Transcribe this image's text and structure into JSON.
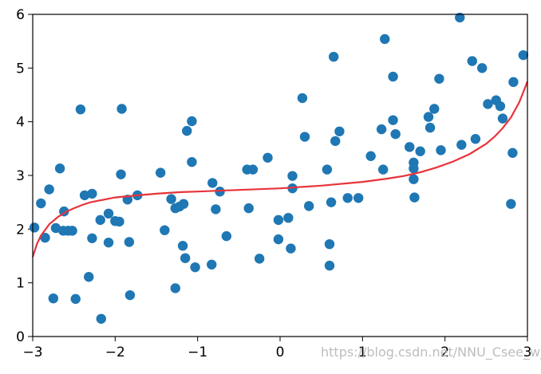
{
  "chart_data": {
    "type": "scatter",
    "title": "",
    "xlabel": "",
    "ylabel": "",
    "xlim": [
      -3,
      3
    ],
    "ylim": [
      0,
      6
    ],
    "xticks": [
      -3,
      -2,
      -1,
      0,
      1,
      2,
      3
    ],
    "xtick_labels": [
      "−3",
      "−2",
      "−1",
      "0",
      "1",
      "2",
      "3"
    ],
    "yticks": [
      0,
      1,
      2,
      3,
      4,
      5,
      6
    ],
    "ytick_labels": [
      "0",
      "1",
      "2",
      "3",
      "4",
      "5",
      "6"
    ],
    "grid": false,
    "legend": "none",
    "colors": {
      "points": "#1f77b4",
      "curve": "#e8333a",
      "axes": "#000000"
    },
    "scatter_points": [
      [
        -2.98,
        2.03
      ],
      [
        -2.9,
        2.48
      ],
      [
        -2.85,
        1.84
      ],
      [
        -2.8,
        2.74
      ],
      [
        -2.75,
        0.71
      ],
      [
        -2.72,
        2.02
      ],
      [
        -2.67,
        3.13
      ],
      [
        -2.63,
        1.97
      ],
      [
        -2.62,
        2.33
      ],
      [
        -2.57,
        1.97
      ],
      [
        -2.52,
        1.97
      ],
      [
        -2.48,
        0.7
      ],
      [
        -2.42,
        4.23
      ],
      [
        -2.37,
        2.63
      ],
      [
        -2.32,
        1.11
      ],
      [
        -2.28,
        2.66
      ],
      [
        -2.28,
        1.83
      ],
      [
        -2.18,
        2.17
      ],
      [
        -2.17,
        0.33
      ],
      [
        -2.08,
        2.29
      ],
      [
        -2.08,
        1.75
      ],
      [
        -2.0,
        2.15
      ],
      [
        -1.95,
        2.14
      ],
      [
        -1.93,
        3.02
      ],
      [
        -1.92,
        4.24
      ],
      [
        -1.85,
        2.55
      ],
      [
        -1.83,
        1.76
      ],
      [
        -1.82,
        0.77
      ],
      [
        -1.73,
        2.63
      ],
      [
        -1.45,
        3.05
      ],
      [
        -1.4,
        1.98
      ],
      [
        -1.32,
        2.56
      ],
      [
        -1.27,
        0.9
      ],
      [
        -1.27,
        2.39
      ],
      [
        -1.22,
        2.42
      ],
      [
        -1.18,
        1.69
      ],
      [
        -1.17,
        2.47
      ],
      [
        -1.15,
        1.46
      ],
      [
        -1.13,
        3.83
      ],
      [
        -1.07,
        4.01
      ],
      [
        -1.07,
        3.25
      ],
      [
        -1.03,
        1.29
      ],
      [
        -0.83,
        1.34
      ],
      [
        -0.82,
        2.86
      ],
      [
        -0.78,
        2.37
      ],
      [
        -0.73,
        2.7
      ],
      [
        -0.65,
        1.87
      ],
      [
        -0.4,
        3.11
      ],
      [
        -0.38,
        2.39
      ],
      [
        -0.33,
        3.11
      ],
      [
        -0.25,
        1.45
      ],
      [
        -0.15,
        3.33
      ],
      [
        -0.02,
        2.17
      ],
      [
        -0.02,
        1.81
      ],
      [
        0.1,
        2.21
      ],
      [
        0.13,
        1.64
      ],
      [
        0.15,
        2.76
      ],
      [
        0.15,
        2.99
      ],
      [
        0.27,
        4.44
      ],
      [
        0.3,
        3.72
      ],
      [
        0.35,
        2.43
      ],
      [
        0.57,
        3.11
      ],
      [
        0.6,
        1.72
      ],
      [
        0.6,
        1.32
      ],
      [
        0.62,
        2.5
      ],
      [
        0.65,
        5.21
      ],
      [
        0.67,
        3.64
      ],
      [
        0.72,
        3.82
      ],
      [
        0.82,
        2.58
      ],
      [
        0.95,
        2.58
      ],
      [
        1.1,
        3.36
      ],
      [
        1.23,
        3.86
      ],
      [
        1.25,
        3.11
      ],
      [
        1.27,
        5.54
      ],
      [
        1.37,
        4.03
      ],
      [
        1.37,
        4.84
      ],
      [
        1.4,
        3.77
      ],
      [
        1.57,
        3.53
      ],
      [
        1.62,
        3.24
      ],
      [
        1.62,
        3.13
      ],
      [
        1.62,
        2.93
      ],
      [
        1.63,
        2.59
      ],
      [
        1.7,
        3.45
      ],
      [
        1.8,
        4.09
      ],
      [
        1.82,
        3.89
      ],
      [
        1.87,
        4.24
      ],
      [
        1.93,
        4.8
      ],
      [
        1.95,
        3.47
      ],
      [
        2.18,
        5.94
      ],
      [
        2.2,
        3.57
      ],
      [
        2.33,
        5.13
      ],
      [
        2.37,
        3.68
      ],
      [
        2.45,
        5.0
      ],
      [
        2.52,
        4.33
      ],
      [
        2.62,
        4.4
      ],
      [
        2.67,
        4.29
      ],
      [
        2.7,
        4.06
      ],
      [
        2.8,
        2.47
      ],
      [
        2.82,
        3.42
      ],
      [
        2.83,
        4.74
      ],
      [
        2.95,
        5.24
      ]
    ],
    "curve_points": [
      [
        -3.0,
        1.48
      ],
      [
        -2.95,
        1.72
      ],
      [
        -2.9,
        1.88
      ],
      [
        -2.8,
        2.09
      ],
      [
        -2.7,
        2.22
      ],
      [
        -2.6,
        2.32
      ],
      [
        -2.5,
        2.39
      ],
      [
        -2.4,
        2.45
      ],
      [
        -2.3,
        2.5
      ],
      [
        -2.2,
        2.53
      ],
      [
        -2.0,
        2.59
      ],
      [
        -1.8,
        2.62
      ],
      [
        -1.5,
        2.66
      ],
      [
        -1.2,
        2.69
      ],
      [
        -1.0,
        2.7
      ],
      [
        -0.5,
        2.73
      ],
      [
        0.0,
        2.76
      ],
      [
        0.5,
        2.81
      ],
      [
        1.0,
        2.88
      ],
      [
        1.3,
        2.94
      ],
      [
        1.5,
        2.99
      ],
      [
        1.7,
        3.06
      ],
      [
        1.9,
        3.15
      ],
      [
        2.1,
        3.26
      ],
      [
        2.3,
        3.4
      ],
      [
        2.5,
        3.59
      ],
      [
        2.6,
        3.72
      ],
      [
        2.7,
        3.88
      ],
      [
        2.8,
        4.08
      ],
      [
        2.9,
        4.36
      ],
      [
        2.95,
        4.55
      ],
      [
        3.0,
        4.75
      ]
    ]
  },
  "watermark": "https://blog.csdn.net/NNU_Csee_wjw"
}
